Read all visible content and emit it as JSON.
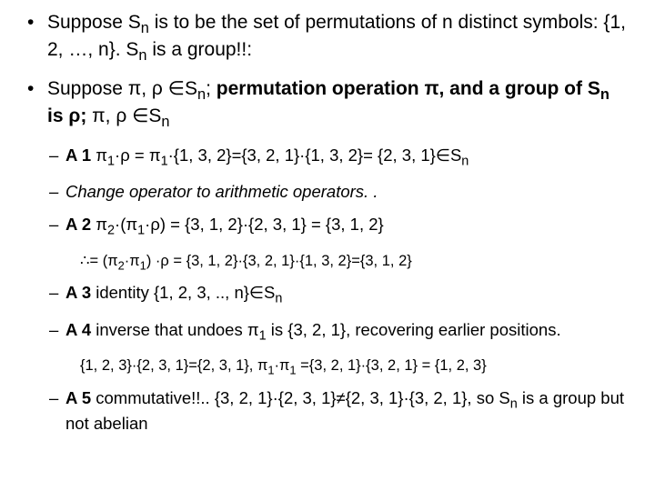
{
  "colors": {
    "text": "#000000",
    "background": "#ffffff"
  },
  "font": {
    "family": "Arial, sans-serif",
    "l1_size": 21,
    "l2_size": 18.5,
    "l3_size": 16.5
  },
  "bullets": {
    "p1a": "Suppose S",
    "p1b": " is to be the set of permutations of n distinct symbols: {1, 2, …, n}. S",
    "p1c": " is a group!!:",
    "p2a": "Suppose π, ρ ∈S",
    "p2b": "; ",
    "p2c": "permutation operation π, and a group of S",
    "p2d": " is ρ; ",
    "p2e": "π, ρ ∈S",
    "a1a": "A 1",
    "a1b": " π",
    "a1sub": "1",
    "a1c": "·ρ = π",
    "a1d": "·{1, 3, 2}={3, 2, 1}·{1, 3, 2}= {2, 3, 1}∈S",
    "chg": "Change operator to arithmetic operators. .",
    "a2a": "A 2",
    "a2b": " π",
    "a2sub": "2",
    "a2c": "·(π",
    "a2d": "·ρ) = {3, 1, 2}·{2, 3, 1} = {3, 1, 2}",
    "a2e": "∴= (π",
    "a2f": "·π",
    "a2g": ") ·ρ = {3, 1, 2}·{3, 2, 1}·{1, 3, 2}={3, 1, 2}",
    "a3a": "A 3",
    "a3b": " identity {1, 2, 3, .., n}∈S",
    "a4a": "A 4",
    "a4b": " inverse that undoes π",
    "a4c": " is {3, 2, 1}, recovering earlier positions.",
    "a4d": "{1, 2, 3}·{2, 3, 1}={2, 3, 1}, π",
    "a4e": "·π",
    "a4f": " ={3, 2, 1}·{3, 2, 1} = {1, 2, 3}",
    "a5a": "A 5",
    "a5b": " commutative!!.. {3, 2, 1}·{2, 3, 1}≠{2, 3, 1}·{3, 2, 1}, so S",
    "a5c": " is a group but not abelian",
    "n": "n",
    "one": "1",
    "two": "2"
  }
}
